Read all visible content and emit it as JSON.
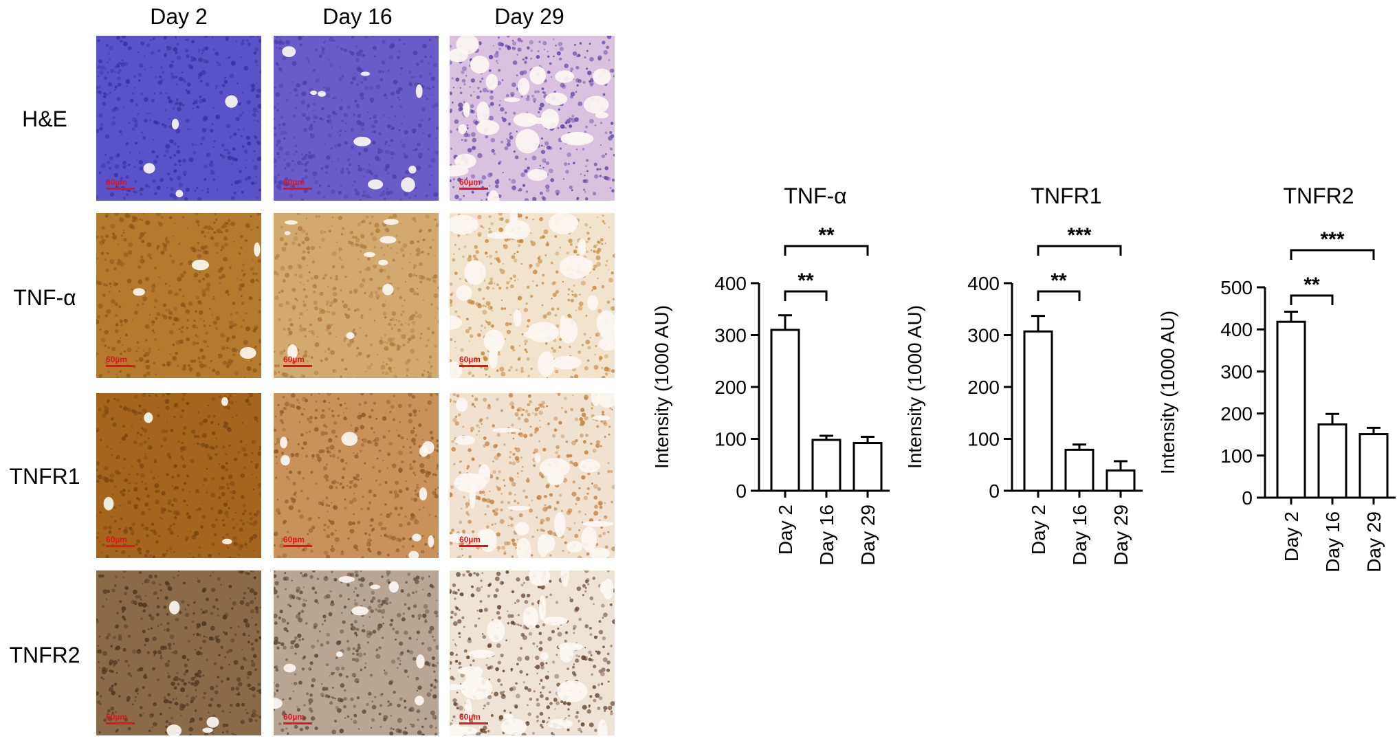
{
  "micrographs": {
    "columns": [
      "Day 2",
      "Day 16",
      "Day 29"
    ],
    "rows": [
      {
        "label": "H&E",
        "colors": [
          "#5a52c8",
          "#6a5cc8",
          "#d8c2e0"
        ],
        "speck": [
          "#3a2f9e",
          "#4a3fa8",
          "#5d3fa0"
        ]
      },
      {
        "label": "TNF-α",
        "colors": [
          "#b57a2c",
          "#d2aa70",
          "#f2e4cc"
        ],
        "speck": [
          "#8c5418",
          "#b07a3a",
          "#c2843c"
        ]
      },
      {
        "label": "TNFR1",
        "colors": [
          "#a5651c",
          "#c8925a",
          "#f1e2cf"
        ],
        "speck": [
          "#7a4510",
          "#8e5a28",
          "#c07c3c"
        ]
      },
      {
        "label": "TNFR2",
        "colors": [
          "#8a6a48",
          "#b8a592",
          "#eee4d6"
        ],
        "speck": [
          "#4c3420",
          "#5a4230",
          "#5c3c22"
        ]
      }
    ],
    "scale_label": "60µm"
  },
  "chart_data": [
    {
      "type": "bar",
      "title": "TNF-α",
      "ylabel": "Intensity (1000 AU)",
      "categories": [
        "Day 2",
        "Day 16",
        "Day 29"
      ],
      "values": [
        310,
        98,
        92
      ],
      "errors": [
        28,
        8,
        12
      ],
      "ylim": [
        0,
        400
      ],
      "yticks": [
        0,
        100,
        200,
        300,
        400
      ],
      "significance": [
        {
          "from": 0,
          "to": 1,
          "label": "**"
        },
        {
          "from": 0,
          "to": 2,
          "label": "**"
        }
      ]
    },
    {
      "type": "bar",
      "title": "TNFR1",
      "ylabel": "Intensity (1000 AU)",
      "categories": [
        "Day 2",
        "Day 16",
        "Day 29"
      ],
      "values": [
        307,
        79,
        39
      ],
      "errors": [
        30,
        10,
        18
      ],
      "ylim": [
        0,
        400
      ],
      "yticks": [
        0,
        100,
        200,
        300,
        400
      ],
      "significance": [
        {
          "from": 0,
          "to": 1,
          "label": "**"
        },
        {
          "from": 0,
          "to": 2,
          "label": "***"
        }
      ]
    },
    {
      "type": "bar",
      "title": "TNFR2",
      "ylabel": "Intensity (1000 AU)",
      "categories": [
        "Day 2",
        "Day 16",
        "Day 29"
      ],
      "values": [
        418,
        174,
        151
      ],
      "errors": [
        24,
        25,
        15
      ],
      "ylim": [
        0,
        500
      ],
      "yticks": [
        0,
        100,
        200,
        300,
        400,
        500
      ],
      "significance": [
        {
          "from": 0,
          "to": 1,
          "label": "**"
        },
        {
          "from": 0,
          "to": 2,
          "label": "***"
        }
      ]
    }
  ]
}
